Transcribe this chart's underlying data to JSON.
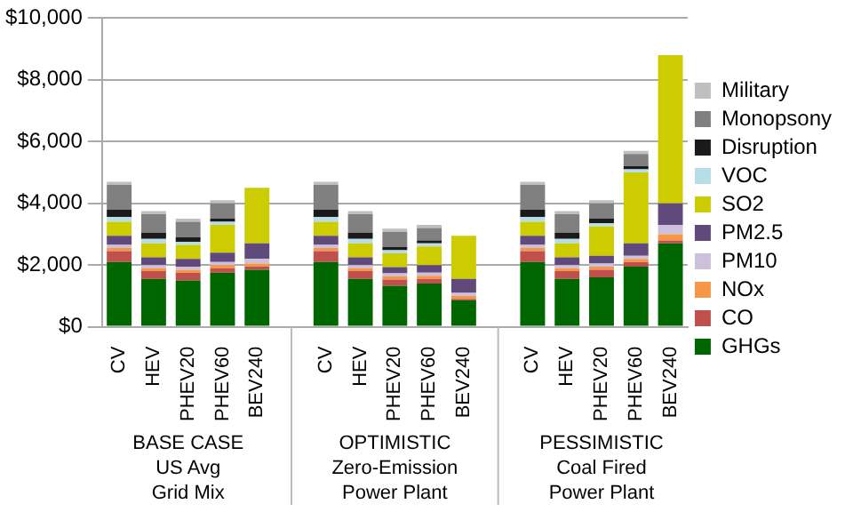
{
  "chart_data": {
    "type": "bar",
    "stacked": true,
    "categories": [
      "CV",
      "HEV",
      "PHEV20",
      "PHEV60",
      "BEV240",
      null,
      "CV",
      "HEV",
      "PHEV20",
      "PHEV60",
      "BEV240",
      null,
      "CV",
      "HEV",
      "PHEV20",
      "PHEV60",
      "BEV240"
    ],
    "series": [
      {
        "name": "GHGs",
        "color": "#006600",
        "values": [
          2100,
          1550,
          1500,
          1750,
          1850,
          null,
          2100,
          1550,
          1330,
          1400,
          850,
          null,
          2100,
          1550,
          1600,
          1950,
          2700
        ]
      },
      {
        "name": "CO",
        "color": "#c0504d",
        "values": [
          350,
          250,
          250,
          150,
          100,
          null,
          350,
          250,
          200,
          150,
          50,
          null,
          350,
          250,
          250,
          150,
          100
        ]
      },
      {
        "name": "NOx",
        "color": "#f79646",
        "values": [
          100,
          100,
          100,
          100,
          100,
          null,
          100,
          100,
          100,
          100,
          100,
          null,
          100,
          100,
          100,
          100,
          200
        ]
      },
      {
        "name": "PM10",
        "color": "#ccc0da",
        "values": [
          100,
          100,
          100,
          100,
          150,
          null,
          100,
          100,
          100,
          100,
          100,
          null,
          100,
          100,
          100,
          100,
          300
        ]
      },
      {
        "name": "PM2.5",
        "color": "#604a7b",
        "values": [
          300,
          250,
          250,
          300,
          500,
          null,
          300,
          250,
          200,
          250,
          450,
          null,
          300,
          250,
          250,
          400,
          700
        ]
      },
      {
        "name": "SO2",
        "color": "#cccc00",
        "values": [
          450,
          450,
          450,
          900,
          1800,
          null,
          450,
          450,
          450,
          600,
          1400,
          null,
          450,
          450,
          950,
          2300,
          4800
        ]
      },
      {
        "name": "VOC",
        "color": "#b7dee8",
        "values": [
          150,
          150,
          100,
          100,
          0,
          null,
          150,
          150,
          100,
          100,
          0,
          null,
          150,
          150,
          100,
          100,
          0
        ]
      },
      {
        "name": "Disruption",
        "color": "#1a1a1a",
        "values": [
          250,
          200,
          150,
          100,
          0,
          null,
          250,
          200,
          100,
          100,
          0,
          null,
          250,
          200,
          150,
          100,
          0
        ]
      },
      {
        "name": "Monopsony",
        "color": "#808080",
        "values": [
          800,
          600,
          500,
          500,
          0,
          null,
          800,
          600,
          500,
          400,
          0,
          null,
          800,
          600,
          500,
          400,
          0
        ]
      },
      {
        "name": "Military",
        "color": "#bfbfbf",
        "values": [
          100,
          100,
          100,
          100,
          0,
          null,
          100,
          100,
          100,
          100,
          0,
          null,
          100,
          100,
          100,
          100,
          0
        ]
      }
    ],
    "ylim": [
      0,
      10000
    ],
    "yticks": [
      {
        "value": 0,
        "label": "$0"
      },
      {
        "value": 2000,
        "label": "$2,000"
      },
      {
        "value": 4000,
        "label": "$4,000"
      },
      {
        "value": 6000,
        "label": "$6,000"
      },
      {
        "value": 8000,
        "label": "$8,000"
      },
      {
        "value": 10000,
        "label": "$10,000"
      }
    ],
    "grid": "y",
    "legend": "right",
    "annotations": [
      "BASE CASE\nUS Avg\nGrid Mix",
      "OPTIMISTIC\nZero-Emission\nPower Plant",
      "PESSIMISTIC\nCoal Fired\nPower Plant"
    ]
  }
}
